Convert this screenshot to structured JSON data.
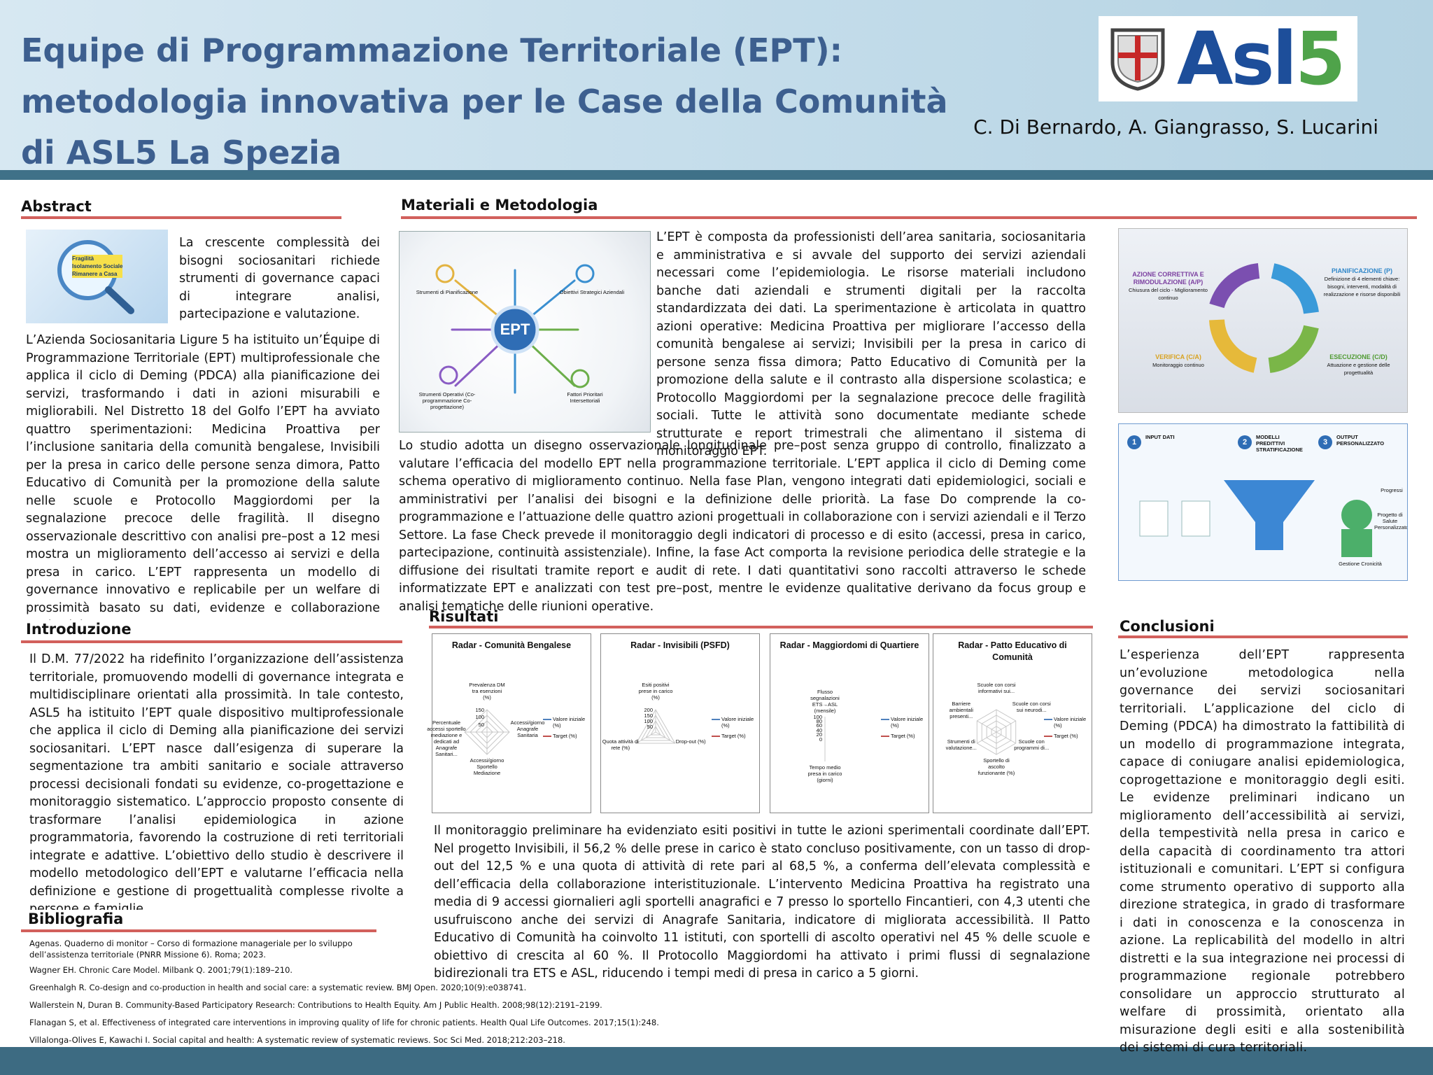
{
  "header": {
    "title_lines": [
      "Equipe di Programmazione Territoriale (EPT):",
      "metodologia innovativa per le Case della Comunità",
      "di ASL5 La Spezia"
    ],
    "authors": "C. Di Bernardo, A. Giangrasso, S. Lucarini",
    "logo": {
      "letters": "Asl",
      "digit": "5"
    }
  },
  "abstract": {
    "heading": "Abstract",
    "image_labels": [
      "Fragilità",
      "Isolamento Sociale",
      "Rimanere a Casa"
    ],
    "lead": "La crescente complessità dei bisogni sociosanitari richiede strumenti di governance capaci di integrare analisi, partecipazione e valutazione.",
    "body": "L’Azienda Sociosanitaria Ligure 5 ha istituito un’Équipe di Programmazione Territoriale (EPT) multiprofessionale che applica il ciclo di Deming (PDCA) alla pianificazione dei servizi, trasformando i dati in azioni misurabili e migliorabili. Nel Distretto 18 del Golfo l’EPT ha avviato quattro sperimentazioni: Medicina Proattiva per l’inclusione sanitaria della comunità bengalese, Invisibili per la presa in carico delle persone senza dimora, Patto Educativo di Comunità per la promozione della salute nelle scuole e Protocollo Maggiordomi per la segnalazione precoce delle fragilità. Il disegno osservazionale descrittivo con analisi pre–post a 12 mesi mostra un miglioramento dell’accesso ai servizi e della presa in carico. L’EPT rappresenta un modello di governance innovativo e replicabile per un welfare di prossimità basato su dati, evidenze e collaborazione territoriale."
  },
  "introduction": {
    "heading": "Introduzione",
    "body": "Il D.M. 77/2022 ha ridefinito l’organizzazione dell’assistenza territoriale, promuovendo modelli di governance integrata e multidisciplinare orientati alla prossimità. In tale contesto, ASL5 ha istituito l’EPT quale dispositivo multiprofessionale che applica il ciclo di Deming alla pianificazione dei servizi sociosanitari. L’EPT nasce dall’esigenza di superare la segmentazione tra ambiti sanitario e sociale attraverso processi decisionali fondati su evidenze, co-progettazione e monitoraggio sistematico. L’approccio proposto consente di trasformare l’analisi epidemiologica in azione programmatoria, favorendo la costruzione di reti territoriali integrate e adattive. L’obiettivo dello studio è descrivere il modello metodologico dell’EPT e valutarne l’efficacia nella definizione e gestione di progettualità complesse rivolte a persone e famiglie."
  },
  "bibliography": {
    "heading": "Bibliografia",
    "references": [
      "Agenas. Quaderno di monitor – Corso di formazione manageriale per lo sviluppo dell’assistenza territoriale (PNRR Missione 6). Roma; 2023.",
      "Wagner EH. Chronic Care Model. Milbank Q. 2001;79(1):189–210.",
      "Greenhalgh R. Co-design and co-production in health and social care: a systematic review. BMJ Open. 2020;10(9):e038741.",
      "Wallerstein N, Duran B. Community-Based Participatory Research: Contributions to Health Equity. Am J Public Health. 2008;98(12):2191–2199.",
      "Flanagan S, et al. Effectiveness of integrated care interventions in improving quality of life for chronic patients. Health Qual Life Outcomes. 2017;15(1):248.",
      "Villalonga-Olives E, Kawachi I. Social capital and health: A systematic review of systematic reviews. Soc Sci Med. 2018;212:203–218."
    ]
  },
  "materials": {
    "heading": "Materiali e Metodologia",
    "side_text": "L’EPT è composta da professionisti dell’area sanitaria, sociosanitaria e amministrativa e si avvale del supporto dei servizi aziendali necessari come l’epidemiologia. Le risorse materiali includono banche dati aziendali e strumenti digitali per la raccolta standardizzata dei dati. La sperimentazione è articolata in quattro azioni operative: Medicina Proattiva per migliorare l’accesso della comunità bengalese ai servizi; Invisibili per la presa in carico di persone senza fissa dimora; Patto Educativo di Comunità per la promozione della salute e il contrasto alla dispersione scolastica; e Protocollo Maggiordomi per la segnalazione precoce delle fragilità sociali. Tutte le attività sono documentate mediante schede strutturate e report trimestrali che alimentano il sistema di monitoraggio EPT.",
    "full_text": "Lo studio adotta un disegno osservazionale longitudinale pre–post senza gruppo di controllo, finalizzato a valutare l’efficacia del modello EPT nella programmazione territoriale. L’EPT applica il ciclo di Deming come schema operativo di miglioramento continuo. Nella fase Plan, vengono integrati dati epidemiologici, sociali e amministrativi per l’analisi dei bisogni e la definizione delle priorità. La fase Do comprende la co-programmazione e l’attuazione delle quattro azioni progettuali in collaborazione con i servizi aziendali e il Terzo Settore. La fase Check  prevede il monitoraggio degli indicatori di processo e di esito (accessi, presa in carico, partecipazione, continuità assistenziale). Infine, la fase Act  comporta la revisione periodica delle strategie e la diffusione dei risultati tramite report e audit di rete. I dati quantitativi sono raccolti attraverso le schede informatizzate EPT e analizzati con test pre–post, mentre le evidenze qualitative derivano da focus group e analisi tematiche delle riunioni operative.",
    "ept_diagram": {
      "center": "EPT",
      "labels": [
        "Strumenti di Pianificazione",
        "Obiettivi Strategici Aziendali",
        "Strumenti Operativi (Co-programmazione Co-progettazione)",
        "Fattori Prioritari Intersettoriali"
      ]
    },
    "pdca_diagram": {
      "phases": [
        {
          "title": "AZIONE CORRETTIVA E RIMODULAZIONE (A/P)",
          "text": "Chiusura del ciclo - Miglioramento continuo"
        },
        {
          "title": "PIANIFICAZIONE (P)",
          "text": "Definizione di 4 elementi chiave: bisogni, interventi, modalità di realizzazione e risorse disponibili"
        },
        {
          "title": "VERIFICA (C/A)",
          "text": "Monitoraggio continuo"
        },
        {
          "title": "ESECUZIONE (C/D)",
          "text": "Attuazione e gestione delle progettualità"
        }
      ]
    },
    "funnel_diagram": {
      "steps": [
        {
          "number": 1,
          "label": "INPUT DATI"
        },
        {
          "number": 2,
          "label": "MODELLI PREDITTIVI STRATIFICAZIONE"
        },
        {
          "number": 3,
          "label": "OUTPUT PERSONALIZZATO"
        }
      ],
      "side_labels": [
        "Progressi",
        "Progetto di Salute Personalizzato",
        "Gestione Cronicità"
      ]
    }
  },
  "results": {
    "heading": "Risultati",
    "legend": [
      {
        "name": "Valore iniziale (%)",
        "color": "#4f81bd"
      },
      {
        "name": "Target (%)",
        "color": "#c0504d"
      }
    ],
    "radars": [
      {
        "title": "Radar - Comunità Bengalese",
        "axes": [
          "Prevalenza DM tra esenzioni (%)",
          "Accessi/giorno Anagrafe Sanitaria",
          "Accessi/giorno Sportello Mediazione",
          "Percentuale accessi sportello mediazione e dedicati ad Anagrafe Sanitari..."
        ],
        "ticks": [
          150,
          100,
          50
        ]
      },
      {
        "title": "Radar - Invisibili (PSFD)",
        "axes": [
          "Esiti positivi prese in carico (%)",
          "Drop-out (%)",
          "Quota attività di rete (%)"
        ],
        "ticks": [
          200,
          150,
          100,
          50
        ]
      },
      {
        "title": "Radar - Maggiordomi di Quartiere",
        "axes": [
          "Flusso segnalazioni ETS→ASL (mensile)",
          "Tempo medio presa in carico (giorni)"
        ],
        "ticks": [
          100,
          80,
          60,
          40,
          20,
          0
        ]
      },
      {
        "title": "Radar - Patto Educativo di Comunità",
        "axes": [
          "Scuole con corsi informativi sui...",
          "Scuole con corsi sui neurodi...",
          "Scuole con programmi di...",
          "Sportello di ascolto funzionante (%)",
          "Strumenti di valutazione...",
          "Barriere ambientali presenti..."
        ],
        "ticks": []
      }
    ],
    "body": "Il monitoraggio preliminare ha evidenziato esiti positivi in tutte le azioni sperimentali coordinate dall’EPT. Nel progetto Invisibili, il 56,2 % delle prese in carico è stato concluso positivamente, con un tasso di drop-out del 12,5 % e una quota di attività di rete pari al 68,5 %, a conferma dell’elevata complessità e dell’efficacia della collaborazione interistituzionale. L’intervento Medicina Proattiva ha registrato una media di 9 accessi giornalieri agli sportelli anagrafici e 7 presso lo sportello Fincantieri, con 4,3 utenti che usufruiscono anche dei servizi di Anagrafe Sanitaria, indicatore di migliorata accessibilità. Il Patto Educativo di Comunità ha coinvolto 11 istituti, con sportelli di ascolto operativi nel 45 % delle scuole e obiettivo di crescita al 60 %. Il Protocollo Maggiordomi ha attivato i primi flussi di segnalazione bidirezionali tra ETS e ASL, riducendo i tempi medi di presa in carico a 5 giorni."
  },
  "conclusions": {
    "heading": "Conclusioni",
    "body": "L’esperienza dell’EPT rappresenta un’evoluzione metodologica nella governance dei servizi sociosanitari territoriali. L’applicazione del ciclo di Deming (PDCA) ha dimostrato la fattibilità di un modello di programmazione integrata, capace di coniugare analisi epidemiologica, coprogettazione e monitoraggio degli esiti. Le evidenze preliminari indicano un miglioramento dell’accessibilità ai servizi, della tempestività nella presa in carico e della capacità di coordinamento tra attori istituzionali e comunitari. L’EPT si configura come strumento operativo di supporto alla direzione strategica, in grado di trasformare i dati in conoscenza e la conoscenza in azione. La replicabilità del modello in altri distretti e la sua integrazione nei processi di programmazione regionale potrebbero consolidare un approccio strutturato al welfare di prossimità, orientato alla misurazione degli esiti e alla sostenibilità dei sistemi di cura territoriali."
  }
}
